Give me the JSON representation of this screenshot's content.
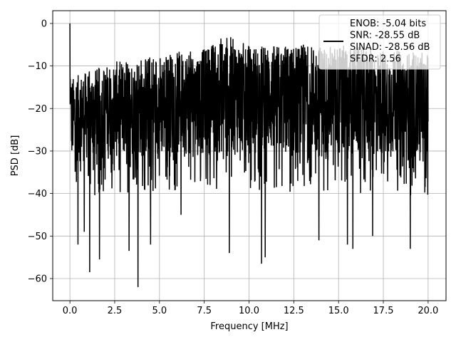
{
  "chart_data": {
    "type": "line",
    "title": "",
    "xlabel": "Frequency [MHz]",
    "ylabel": "PSD [dB]",
    "xlim": [
      -0.96,
      21.0
    ],
    "ylim": [
      -65.2,
      3.0
    ],
    "grid": true,
    "x_ticks": [
      0.0,
      2.5,
      5.0,
      7.5,
      10.0,
      12.5,
      15.0,
      17.5,
      20.0
    ],
    "x_tick_labels": [
      "0.0",
      "2.5",
      "5.0",
      "7.5",
      "10.0",
      "12.5",
      "15.0",
      "17.5",
      "20.0"
    ],
    "y_ticks": [
      0,
      -10,
      -20,
      -30,
      -40,
      -50,
      -60
    ],
    "y_tick_labels": [
      "0",
      "−10",
      "−20",
      "−30",
      "−40",
      "−50",
      "−60"
    ],
    "legend": {
      "placement": "upper right",
      "entries": [
        "ENOB: -5.04 bits",
        "SNR: -28.55 dB",
        "SINAD: -28.56 dB",
        "SFDR: 2.56"
      ]
    },
    "series": [
      {
        "color": "#000000",
        "x_range": [
          0.0,
          20.0
        ],
        "approx_points": 2048,
        "peak": {
          "x": 0.0,
          "y": 0.0
        },
        "upper_envelope": {
          "x": [
            0.0,
            0.5,
            2.5,
            5.0,
            7.5,
            8.6,
            10.0,
            12.5,
            15.0,
            17.5,
            20.0
          ],
          "y": [
            -13,
            -12,
            -9,
            -7,
            -6,
            -2.5,
            -5,
            -5,
            -5,
            -6,
            -7
          ]
        },
        "lower_envelope": {
          "x": [
            0.0,
            2.5,
            5.0,
            7.5,
            10.0,
            12.5,
            15.0,
            17.5,
            20.0
          ],
          "y": [
            -33,
            -32,
            -32,
            -31,
            -31,
            -32,
            -32,
            -32,
            -33
          ]
        },
        "deep_nulls": [
          {
            "x": 0.45,
            "y": -52
          },
          {
            "x": 0.8,
            "y": -49
          },
          {
            "x": 1.1,
            "y": -58.5
          },
          {
            "x": 1.65,
            "y": -55.5
          },
          {
            "x": 3.3,
            "y": -53.5
          },
          {
            "x": 3.8,
            "y": -62
          },
          {
            "x": 4.5,
            "y": -52
          },
          {
            "x": 6.2,
            "y": -45
          },
          {
            "x": 8.9,
            "y": -54
          },
          {
            "x": 10.7,
            "y": -56.5
          },
          {
            "x": 10.9,
            "y": -55
          },
          {
            "x": 13.9,
            "y": -51
          },
          {
            "x": 15.5,
            "y": -52
          },
          {
            "x": 15.8,
            "y": -53
          },
          {
            "x": 16.9,
            "y": -50
          },
          {
            "x": 19.0,
            "y": -53
          }
        ],
        "mean_floor": -22
      }
    ]
  }
}
